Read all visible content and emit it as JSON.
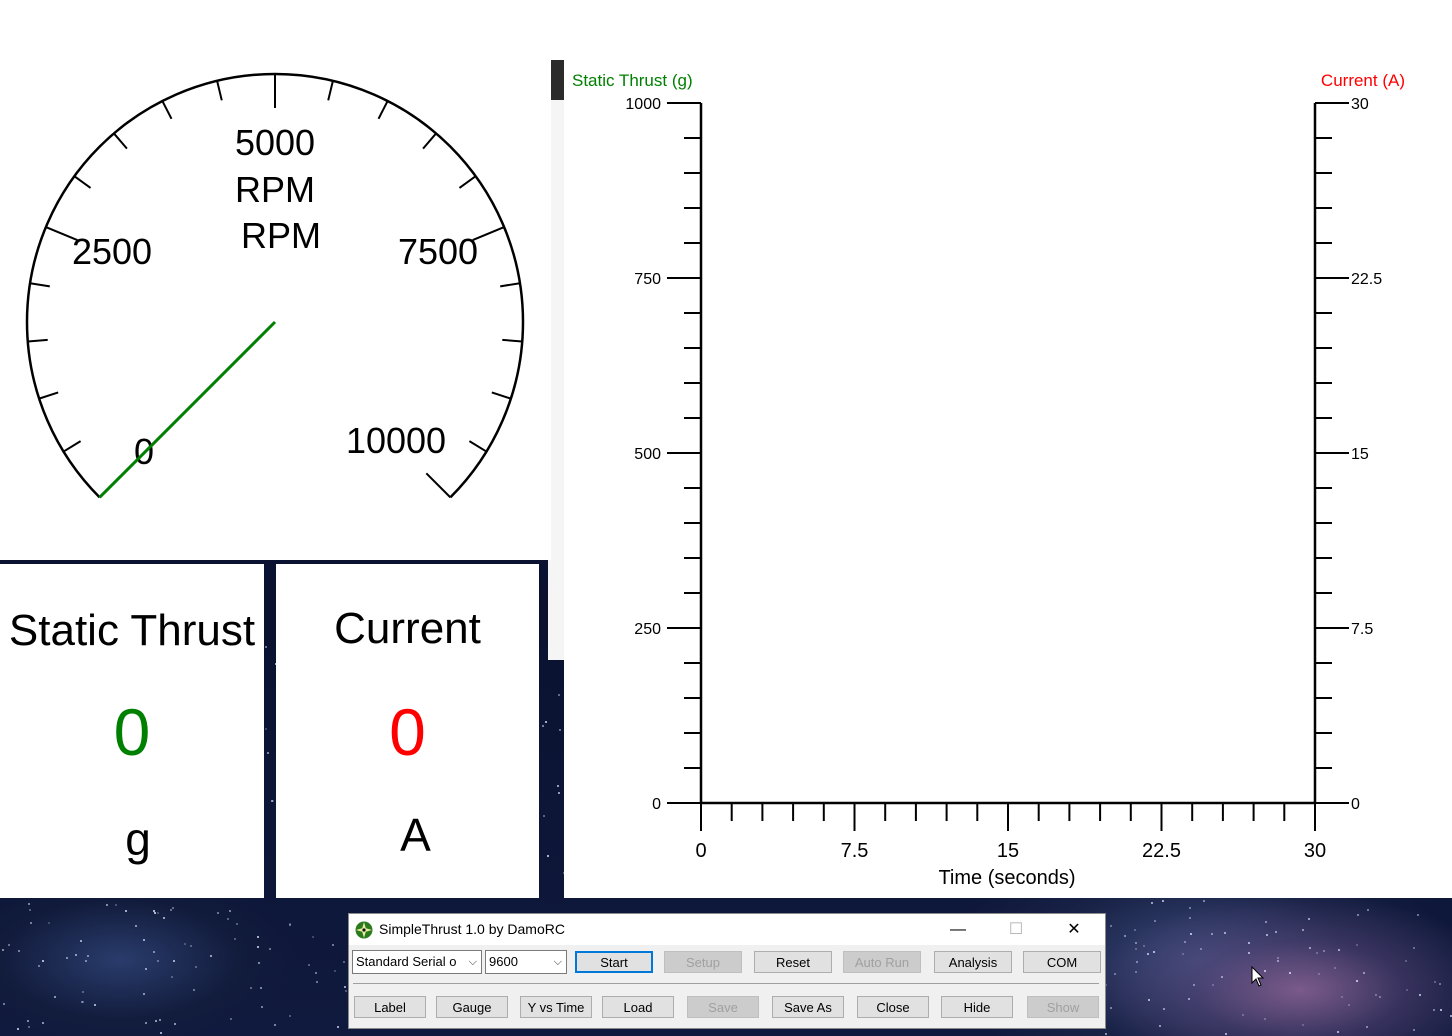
{
  "gauge": {
    "top_label": "5000",
    "units_line1": "RPM",
    "units_line2": "RPM",
    "tick_labels": [
      "0",
      "2500",
      "5000",
      "7500",
      "10000"
    ],
    "needle_value": 0,
    "min": 0,
    "max": 10000,
    "needle_color": "#008000"
  },
  "thrust": {
    "title": "Static Thrust",
    "value": "0",
    "unit": "g",
    "color": "#008000"
  },
  "current": {
    "title": "Current",
    "value": "0",
    "unit": "A",
    "color": "#ff0000"
  },
  "chart_data": {
    "type": "line",
    "left_axis_label": "Static Thrust (g)",
    "left_axis_color": "#008000",
    "right_axis_label": "Current (A)",
    "right_axis_color": "#ff0000",
    "xlabel": "Time (seconds)",
    "x_ticks": [
      "0",
      "7.5",
      "15",
      "22.5",
      "30"
    ],
    "left_ticks": [
      "0",
      "250",
      "500",
      "750",
      "1000"
    ],
    "right_ticks": [
      "0",
      "7.5",
      "15",
      "22.5",
      "30"
    ],
    "xlim": [
      0,
      30
    ],
    "ylim_left": [
      0,
      1000
    ],
    "ylim_right": [
      0,
      30
    ],
    "series": []
  },
  "app": {
    "title": "SimpleThrust 1.0 by DamoRC",
    "port_select": "Standard Serial o",
    "baud_select": "9600",
    "buttons_row1": [
      {
        "label": "Start",
        "enabled": true,
        "default": true
      },
      {
        "label": "Setup",
        "enabled": false
      },
      {
        "label": "Reset",
        "enabled": true
      },
      {
        "label": "Auto Run",
        "enabled": false
      },
      {
        "label": "Analysis",
        "enabled": true
      },
      {
        "label": "COM",
        "enabled": true
      }
    ],
    "buttons_row2": [
      {
        "label": "Label",
        "enabled": true
      },
      {
        "label": "Gauge",
        "enabled": true
      },
      {
        "label": "Y vs Time",
        "enabled": true
      },
      {
        "label": "Load",
        "enabled": true
      },
      {
        "label": "Save",
        "enabled": false
      },
      {
        "label": "Save As",
        "enabled": true
      },
      {
        "label": "Close",
        "enabled": true
      },
      {
        "label": "Hide",
        "enabled": true
      },
      {
        "label": "Show",
        "enabled": false
      }
    ],
    "minimize_glyph": "—",
    "maximize_glyph": "☐",
    "close_glyph": "✕"
  }
}
